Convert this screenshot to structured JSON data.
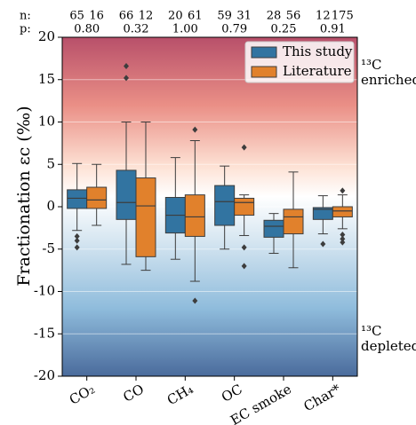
{
  "chart_data": {
    "type": "box",
    "ylabel": "Fractionation εc (‰)",
    "categories": [
      "CO₂",
      "CO",
      "CH₄",
      "OC",
      "EC smoke",
      "Char*"
    ],
    "ylim": [
      -20,
      20
    ],
    "yticks": [
      -20,
      -15,
      -10,
      -5,
      0,
      5,
      10,
      15,
      20
    ],
    "grid": true,
    "legend": "upper right",
    "n_label": "n:",
    "p_test": {
      "label": "p:",
      "values": [
        0.8,
        0.32,
        1.0,
        0.79,
        0.25,
        0.91
      ],
      "value_labels": [
        "0.80",
        "0.32",
        "1.00",
        "0.79",
        "0.25",
        "0.91"
      ]
    },
    "right_labels": {
      "top": [
        "¹³C",
        "enriched"
      ],
      "bottom": [
        "¹³C",
        "depleted"
      ]
    },
    "series": [
      {
        "name": "This study",
        "color": "#3274a1",
        "n": [
          65,
          66,
          20,
          59,
          28,
          12
        ],
        "stats": [
          {
            "whislo": -2.8,
            "q1": -0.2,
            "med": 1.0,
            "q3": 2.0,
            "whishi": 5.1,
            "fliers": [
              -3.5,
              -4.0,
              -4.8
            ]
          },
          {
            "whislo": -6.8,
            "q1": -1.5,
            "med": 0.5,
            "q3": 4.3,
            "whishi": 10,
            "fliers": [
              15.2,
              16.6
            ]
          },
          {
            "whislo": -6.2,
            "q1": -3.1,
            "med": -1.0,
            "q3": 1.1,
            "whishi": 5.8,
            "fliers": []
          },
          {
            "whislo": -5.0,
            "q1": -2.2,
            "med": 0.6,
            "q3": 2.5,
            "whishi": 4.8,
            "fliers": []
          },
          {
            "whislo": -5.5,
            "q1": -3.6,
            "med": -2.3,
            "q3": -1.6,
            "whishi": -0.8,
            "fliers": []
          },
          {
            "whislo": -3.2,
            "q1": -1.5,
            "med": -0.3,
            "q3": -0.1,
            "whishi": 1.3,
            "fliers": [
              -4.4
            ]
          }
        ]
      },
      {
        "name": "Literature",
        "color": "#e1812c",
        "n": [
          16,
          12,
          61,
          31,
          56,
          175
        ],
        "stats": [
          {
            "whislo": -2.2,
            "q1": -0.2,
            "med": 0.8,
            "q3": 2.3,
            "whishi": 5.0,
            "fliers": []
          },
          {
            "whislo": -7.5,
            "q1": -5.9,
            "med": 0.1,
            "q3": 3.4,
            "whishi": 10,
            "fliers": []
          },
          {
            "whislo": -8.8,
            "q1": -3.5,
            "med": -1.2,
            "q3": 1.4,
            "whishi": 7.8,
            "fliers": [
              9.1,
              -11.1
            ]
          },
          {
            "whislo": -3.4,
            "q1": -1.0,
            "med": 0.5,
            "q3": 1.0,
            "whishi": 1.4,
            "fliers": [
              7.0,
              -4.8,
              -7.0
            ]
          },
          {
            "whislo": -7.2,
            "q1": -3.2,
            "med": -1.2,
            "q3": -0.3,
            "whishi": 4.1,
            "fliers": []
          },
          {
            "whislo": -2.6,
            "q1": -1.2,
            "med": -0.5,
            "q3": 0.0,
            "whishi": 1.4,
            "fliers": [
              1.9,
              -3.3,
              -3.8,
              -4.2
            ]
          }
        ]
      }
    ]
  }
}
